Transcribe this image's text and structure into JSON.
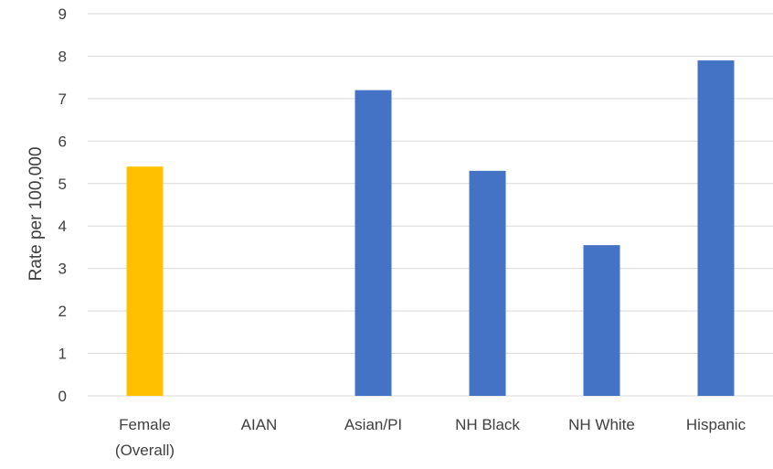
{
  "chart_data": {
    "type": "bar",
    "title": "",
    "xlabel": "",
    "ylabel": "Rate per 100,000",
    "ylim": [
      0,
      9
    ],
    "yticks": [
      0,
      1,
      2,
      3,
      4,
      5,
      6,
      7,
      8,
      9
    ],
    "grid": true,
    "legend": "none",
    "categories": [
      [
        "Female",
        "(Overall)"
      ],
      [
        "AIAN"
      ],
      [
        "Asian/PI"
      ],
      [
        "NH Black"
      ],
      [
        "NH White"
      ],
      [
        "Hispanic"
      ]
    ],
    "values": [
      5.4,
      0,
      7.2,
      5.3,
      3.55,
      7.9
    ],
    "colors": [
      "#FFC000",
      "#4472C4",
      "#4472C4",
      "#4472C4",
      "#4472C4",
      "#4472C4"
    ],
    "gridline_color": "#D9D9D9"
  }
}
